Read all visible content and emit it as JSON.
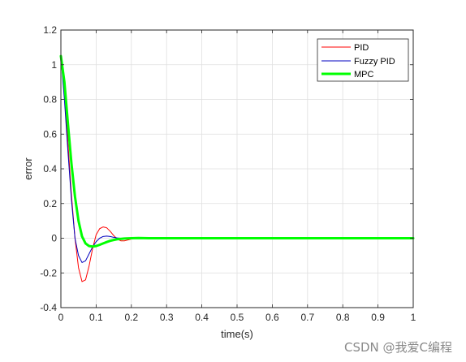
{
  "chart_data": {
    "type": "line",
    "xlabel": "time(s)",
    "ylabel": "error",
    "xlim": [
      0,
      1
    ],
    "ylim": [
      -0.4,
      1.2
    ],
    "xticks": [
      0,
      0.1,
      0.2,
      0.3,
      0.4,
      0.5,
      0.6,
      0.7,
      0.8,
      0.9,
      1
    ],
    "xtick_labels": [
      "0",
      "0.1",
      "0.2",
      "0.3",
      "0.4",
      "0.5",
      "0.6",
      "0.7",
      "0.8",
      "0.9",
      "1"
    ],
    "yticks": [
      -0.4,
      -0.2,
      0,
      0.2,
      0.4,
      0.6,
      0.8,
      1,
      1.2
    ],
    "ytick_labels": [
      "-0.4",
      "-0.2",
      "0",
      "0.2",
      "0.4",
      "0.6",
      "0.8",
      "1",
      "1.2"
    ],
    "grid": true,
    "legend_position": "top-right",
    "series": [
      {
        "name": "PID",
        "color": "#ff0000",
        "width": 1,
        "x": [
          0,
          0.01,
          0.02,
          0.03,
          0.04,
          0.05,
          0.06,
          0.07,
          0.08,
          0.09,
          0.1,
          0.11,
          0.12,
          0.13,
          0.14,
          0.15,
          0.16,
          0.17,
          0.18,
          0.19,
          0.2,
          0.21,
          0.22,
          0.23,
          0.24,
          0.25,
          1
        ],
        "y": [
          1.05,
          0.85,
          0.55,
          0.25,
          0.0,
          -0.17,
          -0.25,
          -0.24,
          -0.16,
          -0.06,
          0.02,
          0.055,
          0.065,
          0.06,
          0.04,
          0.015,
          -0.005,
          -0.015,
          -0.015,
          -0.01,
          -0.005,
          0.0,
          0.003,
          0.002,
          0.0,
          0.0,
          0.0
        ]
      },
      {
        "name": "Fuzzy PID",
        "color": "#0000c0",
        "width": 1,
        "x": [
          0,
          0.01,
          0.02,
          0.03,
          0.04,
          0.05,
          0.06,
          0.07,
          0.08,
          0.09,
          0.1,
          0.11,
          0.12,
          0.13,
          0.14,
          0.15,
          0.16,
          0.17,
          0.18,
          0.2,
          0.25,
          1
        ],
        "y": [
          1.05,
          0.8,
          0.5,
          0.22,
          0.0,
          -0.1,
          -0.14,
          -0.13,
          -0.09,
          -0.05,
          -0.02,
          0.0,
          0.01,
          0.012,
          0.01,
          0.005,
          0.002,
          0.0,
          -0.002,
          0.0,
          0.0,
          0.0
        ]
      },
      {
        "name": "MPC",
        "color": "#00ff00",
        "width": 3,
        "x": [
          0,
          0.01,
          0.02,
          0.03,
          0.04,
          0.05,
          0.06,
          0.07,
          0.08,
          0.09,
          0.1,
          0.11,
          0.12,
          0.13,
          0.14,
          0.15,
          0.16,
          0.18,
          0.2,
          0.22,
          0.25,
          1
        ],
        "y": [
          1.05,
          0.9,
          0.66,
          0.43,
          0.24,
          0.1,
          0.01,
          -0.03,
          -0.045,
          -0.048,
          -0.045,
          -0.038,
          -0.03,
          -0.022,
          -0.015,
          -0.01,
          -0.006,
          -0.002,
          0.0,
          0.001,
          0.0,
          0.0
        ]
      }
    ]
  },
  "watermark": "CSDN @我爱C编程"
}
